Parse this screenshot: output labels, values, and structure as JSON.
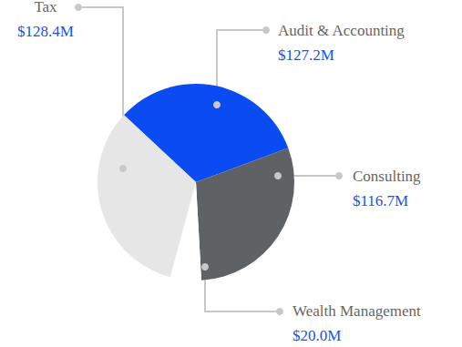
{
  "chart_data": {
    "type": "pie",
    "categories": [
      "Audit & Accounting",
      "Consulting",
      "Wealth Management",
      "Tax"
    ],
    "values": [
      127.2,
      116.7,
      20.0,
      128.4
    ],
    "value_labels": [
      "$127.2M",
      "$116.7M",
      "$20.0M",
      "$128.4M"
    ],
    "colors": [
      "#0a4cf2",
      "#5f6265",
      "#ffffff",
      "#e6e6e6"
    ],
    "data_labels": true
  }
}
